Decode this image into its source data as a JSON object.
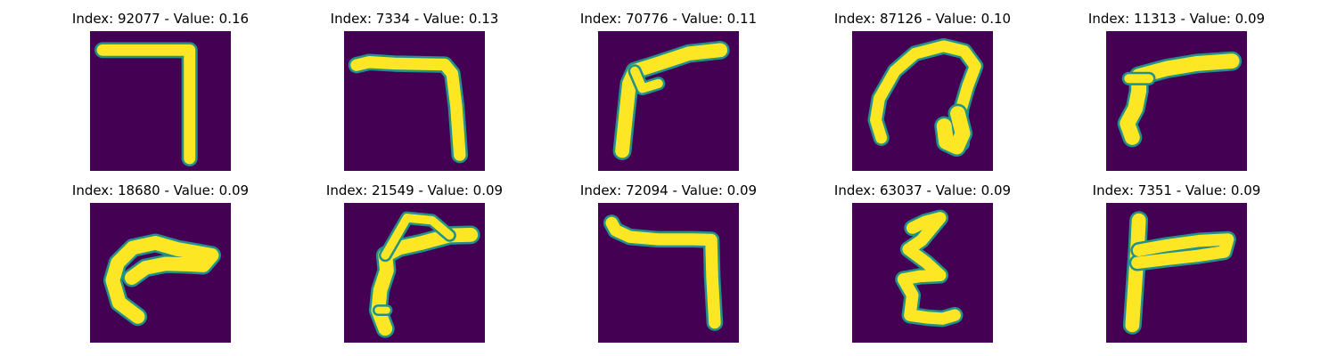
{
  "figure": {
    "colors": {
      "background": "#440154",
      "edge": "#21918c",
      "stroke": "#fde725"
    },
    "panels": [
      {
        "index": "92077",
        "value": "0.16",
        "title": "Index: 92077 - Value: 0.16",
        "glyph": "seven-shape"
      },
      {
        "index": "7334",
        "value": "0.13",
        "title": "Index: 7334 - Value: 0.13",
        "glyph": "seven-shape"
      },
      {
        "index": "70776",
        "value": "0.11",
        "title": "Index: 70776 - Value: 0.11",
        "glyph": "slanted-seven-shape"
      },
      {
        "index": "87126",
        "value": "0.10",
        "title": "Index: 87126 - Value: 0.10",
        "glyph": "loop-shape"
      },
      {
        "index": "11313",
        "value": "0.09",
        "title": "Index: 11313 - Value: 0.09",
        "glyph": "slanted-seven-shape"
      },
      {
        "index": "18680",
        "value": "0.09",
        "title": "Index: 18680 - Value: 0.09",
        "glyph": "hook-shape"
      },
      {
        "index": "21549",
        "value": "0.09",
        "title": "Index: 21549 - Value: 0.09",
        "glyph": "slanted-seven-shape"
      },
      {
        "index": "72094",
        "value": "0.09",
        "title": "Index: 72094 - Value: 0.09",
        "glyph": "seven-shape"
      },
      {
        "index": "63037",
        "value": "0.09",
        "title": "Index: 63037 - Value: 0.09",
        "glyph": "squiggle-shape"
      },
      {
        "index": "7351",
        "value": "0.09",
        "title": "Index: 7351 - Value: 0.09",
        "glyph": "gamma-shape"
      }
    ]
  }
}
